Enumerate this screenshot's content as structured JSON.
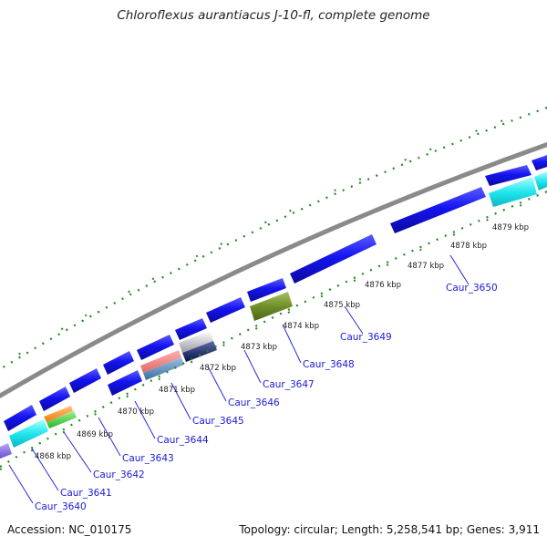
{
  "title": "Chloroflexus aurantiacus J-10-fl, complete genome",
  "footer": {
    "accession": "Accession: NC_010175",
    "summary": "Topology: circular; Length: 5,258,541 bp; Genes: 3,911"
  },
  "colors": {
    "backbone": "#8a8a8a",
    "cds_forward": "#1414f0",
    "kbp_ticks": "#1e8a1e",
    "label_text": "#1a1ad6",
    "leader_line": "#2a2ad8"
  },
  "kbp_ticks": [
    "4868 kbp",
    "4869 kbp",
    "4870 kbp",
    "4871 kbp",
    "4872 kbp",
    "4873 kbp",
    "4874 kbp",
    "4875 kbp",
    "4876 kbp",
    "4877 kbp",
    "4878 kbp",
    "4879 kbp"
  ],
  "gene_labels": [
    "Caur_3640",
    "Caur_3641",
    "Caur_3642",
    "Caur_3643",
    "Caur_3644",
    "Caur_3645",
    "Caur_3646",
    "Caur_3647",
    "Caur_3648",
    "Caur_3649",
    "Caur_3650"
  ]
}
